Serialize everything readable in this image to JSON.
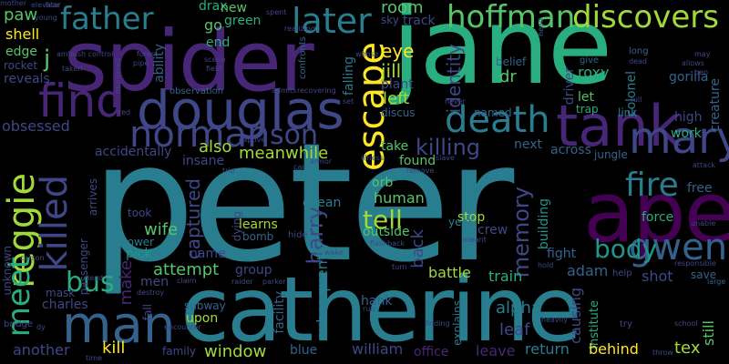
{
  "palette": {
    "background": "#000000",
    "purple": "#482677",
    "dark_purple": "#440154",
    "indigo": "#3f4788",
    "blue": "#33638d",
    "teal": "#287d8e",
    "teal_green": "#1f968b",
    "green": "#29af7f",
    "light_green": "#55c667",
    "lime": "#a0da39",
    "yellow": "#fde725"
  },
  "words": {
    "peter": "peter",
    "jane": "jane",
    "spider": "spider",
    "catherine": "catherine",
    "ape": "ape",
    "tank": "tank",
    "douglas": "douglas",
    "man": "man",
    "find": "find",
    "father": "father",
    "later": "later",
    "hoffman": "hoffman",
    "discovers": "discovers",
    "norman": "norman",
    "son": "son",
    "escape": "escape",
    "death": "death",
    "mary": "mary",
    "gwen": "gwen",
    "fire": "fire",
    "reggie": "reggie",
    "killed": "killed",
    "meet": "meet",
    "bus": "bus",
    "tell": "tell",
    "memory": "memory",
    "body": "body",
    "harry": "harry",
    "eye": "eye",
    "jill": "jill",
    "identity": "identity",
    "left": "left",
    "killing": "killing",
    "meanwhile": "meanwhile",
    "also": "also",
    "room": "room",
    "drax": "drax",
    "green": "green",
    "new": "new",
    "go": "go",
    "end": "end",
    "shell": "shell",
    "paw": "paw",
    "edge": "edge",
    "reveals": "reveals",
    "j": "j",
    "dr": "dr",
    "let": "let",
    "roxy": "roxy",
    "gorilla": "gorilla",
    "trap": "trap",
    "link": "link",
    "high": "high",
    "work": "work",
    "across": "across",
    "next": "next",
    "take": "take",
    "found": "found",
    "human": "human",
    "orb": "orb",
    "stop": "stop",
    "crew": "crew",
    "ocean": "ocean",
    "captured": "captured",
    "learns": "learns",
    "attempt": "attempt",
    "make": "make",
    "men": "men",
    "kill": "kill",
    "another": "another",
    "charles": "charles",
    "mask": "mask",
    "window": "window",
    "blue": "blue",
    "william": "william",
    "office": "office",
    "leave": "leave",
    "return": "return",
    "behind": "behind",
    "tex": "tex",
    "still": "still",
    "leaf": "leaf",
    "alpha": "alpha",
    "adam": "adam",
    "fight": "fight",
    "train": "train",
    "battle": "battle",
    "hank": "hank",
    "shot": "shot",
    "save": "save",
    "free": "free",
    "force": "force",
    "building": "building",
    "causing": "causing",
    "wife": "wife",
    "pick": "pick",
    "power": "power",
    "took": "took",
    "name": "name",
    "group": "group",
    "upon": "upon",
    "subway": "subway",
    "dying": "dying",
    "bomb": "bomb",
    "outside": "outside",
    "back": "back",
    "year": "year",
    "accidentally": "accidentally",
    "insane": "insane",
    "obsessed": "obsessed",
    "unknown": "unknown",
    "bridge": "bridge",
    "passenger": "passenger",
    "arrives": "arrives",
    "fall": "fall",
    "family": "family",
    "facility": "facility",
    "subsequently": "subsequently",
    "explains": "explains",
    "institute": "institute",
    "school": "school",
    "large": "large",
    "sky": "sky",
    "track": "track",
    "confronts": "confronts",
    "plant": "plant",
    "falling": "falling",
    "belief": "belief",
    "driver": "driver",
    "colonel": "colonel",
    "creature": "creature",
    "ability": "ability",
    "observation": "observation",
    "discus": "discus",
    "named": "named",
    "rocket": "rocket",
    "taken": "taken",
    "young": "young",
    "elevator": "elevator",
    "ambush_control": "ambush control",
    "forest": "forest",
    "spent": "spent",
    "realizing": "realizing",
    "whose": "whose",
    "long": "long",
    "dead": "dead",
    "may": "may",
    "allows": "allows",
    "ben": "ben",
    "give": "give",
    "mother": "mother",
    "fear": "fear",
    "murdered": "murdered",
    "red": "red",
    "pipe": "pipe",
    "scene": "scene",
    "field": "field",
    "admits": "admits",
    "recovering": "recovering",
    "set": "set",
    "never": "never",
    "head": "head",
    "full": "full",
    "responsible": "responsible",
    "attack": "attack",
    "unable": "unable",
    "captive": "captive",
    "trio": "trio",
    "car": "car",
    "armor": "armor",
    "illness": "illness",
    "slave": "slave",
    "remove": "remove",
    "jungle": "jungle",
    "hide": "hide",
    "wake": "wake",
    "flashback": "flashback",
    "meant": "meant",
    "turn": "turn",
    "hold": "hold",
    "help": "help",
    "raider": "raider",
    "parker": "parker",
    "claim": "claim",
    "destroy": "destroy",
    "encounter": "encounter",
    "run": "run",
    "finding": "finding",
    "heavily": "heavily",
    "try": "try",
    "throw": "throw",
    "time": "time",
    "dy": "dy",
    "lead": "lead",
    "carson": "carson"
  }
}
